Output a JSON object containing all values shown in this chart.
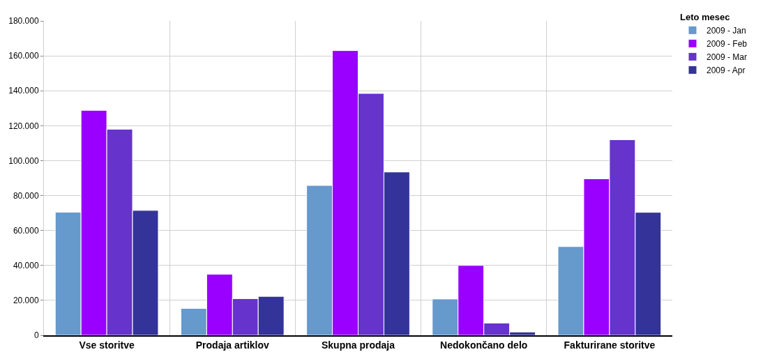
{
  "chart_data": {
    "type": "bar",
    "legend_title": "Leto mesec",
    "categories": [
      "Vse storitve",
      "Prodaja artiklov",
      "Skupna prodaja",
      "Nedokončano delo",
      "Fakturirane storitve"
    ],
    "series": [
      {
        "name": "2009 - Jan",
        "color": "#6699cc",
        "values": [
          70500,
          15400,
          85800,
          20800,
          50800
        ]
      },
      {
        "name": "2009 - Feb",
        "color": "#9900ff",
        "values": [
          128800,
          35000,
          163000,
          40000,
          89600
        ]
      },
      {
        "name": "2009 - Mar",
        "color": "#6633cc",
        "values": [
          118000,
          21000,
          138500,
          7000,
          112000
        ]
      },
      {
        "name": "2009 - Apr",
        "color": "#333399",
        "values": [
          71500,
          22300,
          93500,
          1900,
          70400
        ]
      }
    ],
    "ylim": [
      0,
      180000
    ],
    "yticks": [
      {
        "value": 0,
        "label": "0"
      },
      {
        "value": 20000,
        "label": "20.000"
      },
      {
        "value": 40000,
        "label": "40.000"
      },
      {
        "value": 60000,
        "label": "60.000"
      },
      {
        "value": 80000,
        "label": "80.000"
      },
      {
        "value": 100000,
        "label": "100.000"
      },
      {
        "value": 120000,
        "label": "120.000"
      },
      {
        "value": 140000,
        "label": "140.000"
      },
      {
        "value": 160000,
        "label": "160.000"
      },
      {
        "value": 180000,
        "label": "180.000"
      }
    ],
    "grid": true,
    "legend": "top right"
  }
}
